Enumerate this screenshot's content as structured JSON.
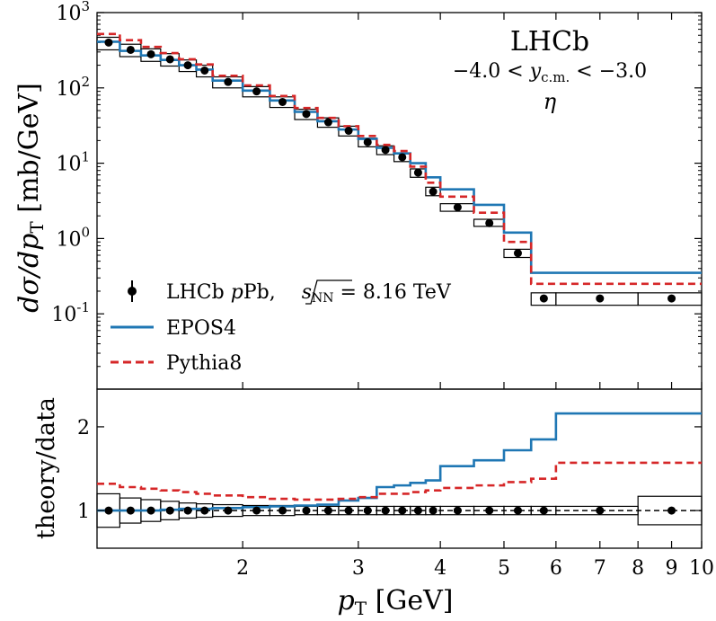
{
  "chart_data": [
    {
      "type": "step",
      "panel": "top",
      "ylabel": "dσ/dpT [mb/GeV]",
      "yscale": "log",
      "ylim": [
        0.01,
        1000
      ],
      "xscale": "log",
      "xlim": [
        1.2,
        10
      ],
      "ytick_labels": [
        "10^-1",
        "10^0",
        "10^1",
        "10^2",
        "10^3"
      ],
      "annotations": {
        "experiment": "LHCb",
        "rapidity": "−4.0 < y_c.m. < −3.0",
        "particle": "η"
      },
      "bin_edges": [
        1.2,
        1.3,
        1.4,
        1.5,
        1.6,
        1.7,
        1.8,
        2.0,
        2.2,
        2.4,
        2.6,
        2.8,
        3.0,
        3.2,
        3.4,
        3.6,
        3.8,
        4.0,
        4.5,
        5.0,
        5.5,
        6.0,
        8.0,
        10.0
      ],
      "series": [
        {
          "name": "LHCb pPb, √sNN = 8.16 TeV",
          "kind": "data",
          "x": [
            1.25,
            1.35,
            1.45,
            1.55,
            1.65,
            1.75,
            1.9,
            2.1,
            2.3,
            2.5,
            2.7,
            2.9,
            3.1,
            3.3,
            3.5,
            3.7,
            3.9,
            4.25,
            4.75,
            5.25,
            5.75,
            7.0,
            9.0
          ],
          "values": [
            400,
            320,
            280,
            240,
            200,
            170,
            120,
            90,
            65,
            45,
            35,
            27,
            19,
            15,
            12,
            7.5,
            4.2,
            2.6,
            1.6,
            0.64,
            0.16,
            0.16,
            0.16
          ],
          "sys_low": [
            320,
            260,
            225,
            195,
            165,
            140,
            100,
            76,
            55,
            38,
            30,
            23,
            16.5,
            13,
            10.5,
            6.5,
            3.7,
            2.3,
            1.45,
            0.56,
            0.13,
            0.13,
            0.13
          ],
          "sys_high": [
            470,
            380,
            330,
            285,
            235,
            200,
            140,
            104,
            76,
            52,
            40,
            31,
            21.5,
            17,
            13.5,
            8.4,
            4.8,
            2.9,
            1.8,
            0.72,
            0.19,
            0.19,
            0.19
          ]
        },
        {
          "name": "EPOS4",
          "color": "#1f77b4",
          "values": [
            410,
            310,
            270,
            235,
            200,
            175,
            125,
            92,
            68,
            48,
            36,
            28,
            21,
            16,
            13.5,
            10,
            6.5,
            4.5,
            2.8,
            1.2,
            0.35,
            0.35,
            0.35
          ]
        },
        {
          "name": "Pythia8",
          "color": "#d62728",
          "values": [
            520,
            430,
            350,
            290,
            240,
            205,
            145,
            108,
            78,
            54,
            40,
            31,
            23,
            17.5,
            14.5,
            9,
            5.5,
            3.6,
            2.2,
            0.9,
            0.25,
            0.25,
            0.25
          ]
        }
      ]
    },
    {
      "type": "step",
      "panel": "bottom",
      "xlabel": "pT [GeV]",
      "ylabel": "theory/data",
      "ylim": [
        0.55,
        2.45
      ],
      "xscale": "log",
      "xlim": [
        1.2,
        10
      ],
      "xtick_labels": [
        "2",
        "3",
        "4",
        "5",
        "6",
        "7",
        "8",
        "9",
        "10"
      ],
      "ytick_labels": [
        "1",
        "2"
      ],
      "bin_edges": [
        1.2,
        1.3,
        1.4,
        1.5,
        1.6,
        1.7,
        1.8,
        2.0,
        2.2,
        2.4,
        2.6,
        2.8,
        3.0,
        3.2,
        3.4,
        3.6,
        3.8,
        4.0,
        4.5,
        5.0,
        5.5,
        6.0,
        8.0,
        10.0
      ],
      "series": [
        {
          "name": "data",
          "kind": "data",
          "x": [
            1.25,
            1.35,
            1.45,
            1.55,
            1.65,
            1.75,
            1.9,
            2.1,
            2.3,
            2.5,
            2.7,
            2.9,
            3.1,
            3.3,
            3.5,
            3.7,
            3.9,
            4.25,
            4.75,
            5.25,
            5.75,
            7.0,
            9.0
          ],
          "values": [
            1,
            1,
            1,
            1,
            1,
            1,
            1,
            1,
            1,
            1,
            1,
            1,
            1,
            1,
            1,
            1,
            1,
            1,
            1,
            1,
            1,
            1,
            1
          ],
          "err": [
            0.2,
            0.15,
            0.13,
            0.11,
            0.09,
            0.08,
            0.07,
            0.06,
            0.06,
            0.05,
            0.05,
            0.05,
            0.05,
            0.05,
            0.05,
            0.05,
            0.05,
            0.05,
            0.05,
            0.05,
            0.05,
            0.05,
            0.17
          ]
        },
        {
          "name": "EPOS4",
          "color": "#1f77b4",
          "values": [
            1.0,
            1.0,
            1.0,
            1.01,
            1.02,
            1.02,
            1.03,
            1.04,
            1.05,
            1.06,
            1.07,
            1.12,
            1.15,
            1.28,
            1.3,
            1.33,
            1.36,
            1.53,
            1.6,
            1.72,
            1.85,
            2.16,
            2.16
          ]
        },
        {
          "name": "Pythia8",
          "color": "#d62728",
          "values": [
            1.32,
            1.28,
            1.26,
            1.24,
            1.22,
            1.2,
            1.18,
            1.16,
            1.14,
            1.13,
            1.13,
            1.14,
            1.16,
            1.2,
            1.2,
            1.22,
            1.24,
            1.27,
            1.3,
            1.34,
            1.38,
            1.57,
            1.57
          ]
        }
      ]
    }
  ],
  "legend": {
    "data_label_prefix": "LHCb ",
    "data_label_p": "p",
    "data_label_pb": "Pb, ",
    "data_label_sqrt": "s",
    "data_label_sub": "NN",
    "data_label_suffix": " = 8.16 TeV",
    "epos": "EPOS4",
    "pythia": "Pythia8"
  },
  "text": {
    "experiment": "LHCb",
    "rap_lo": "−4.0 < ",
    "rap_y": "y",
    "rap_sub": "c.m.",
    "rap_hi": " < −3.0",
    "particle": "η",
    "ylabel_top_main": "dσ/dp",
    "ylabel_top_sub": "T",
    "ylabel_top_unit": " [mb/GeV]",
    "ylabel_bottom": "theory/data",
    "xlabel_p": "p",
    "xlabel_sub": "T",
    "xlabel_unit": " [GeV]"
  }
}
